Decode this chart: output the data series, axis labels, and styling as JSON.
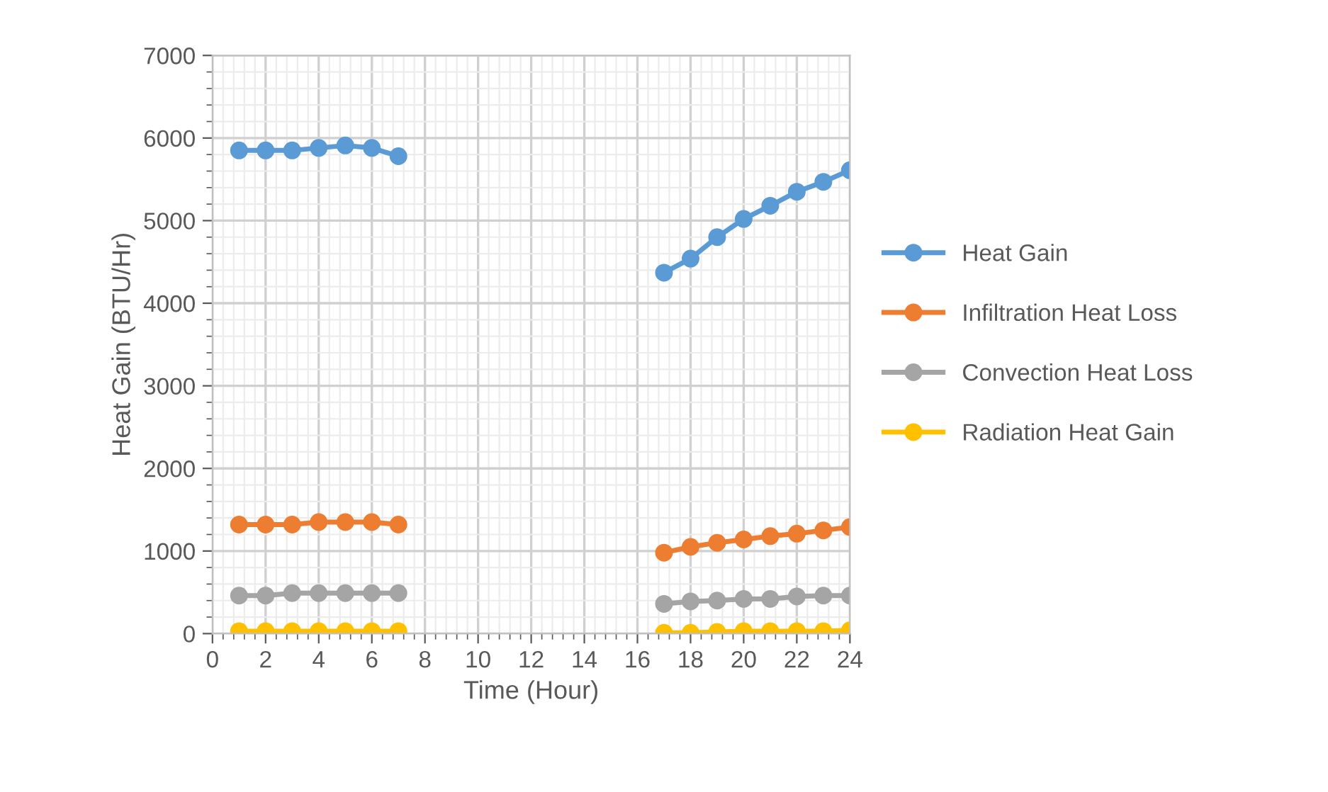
{
  "chart_data": {
    "type": "line",
    "xlabel": "Time (Hour)",
    "ylabel": "Heat Gain (BTU/Hr)",
    "x": [
      1,
      2,
      3,
      4,
      5,
      6,
      7,
      8,
      9,
      10,
      11,
      12,
      13,
      14,
      15,
      16,
      17,
      18,
      19,
      20,
      21,
      22,
      23,
      24
    ],
    "series": [
      {
        "name": "Heat Gain",
        "color": "#5b9bd5",
        "values": [
          5850,
          5850,
          5850,
          5880,
          5910,
          5880,
          5780,
          null,
          null,
          null,
          null,
          null,
          null,
          null,
          null,
          null,
          4370,
          4540,
          4800,
          5020,
          5180,
          5350,
          5470,
          5610
        ]
      },
      {
        "name": "Infiltration Heat Loss",
        "color": "#ed7d31",
        "values": [
          1320,
          1320,
          1320,
          1350,
          1350,
          1350,
          1320,
          null,
          null,
          null,
          null,
          null,
          null,
          null,
          null,
          null,
          980,
          1050,
          1100,
          1140,
          1180,
          1210,
          1250,
          1290
        ]
      },
      {
        "name": "Convection Heat Loss",
        "color": "#a5a5a5",
        "values": [
          460,
          460,
          490,
          490,
          490,
          490,
          490,
          null,
          null,
          null,
          null,
          null,
          null,
          null,
          null,
          null,
          360,
          390,
          400,
          420,
          420,
          450,
          460,
          460
        ]
      },
      {
        "name": "Radiation Heat Gain",
        "color": "#ffc000",
        "values": [
          30,
          30,
          30,
          30,
          30,
          30,
          30,
          null,
          null,
          null,
          null,
          null,
          null,
          null,
          null,
          null,
          10,
          10,
          20,
          30,
          30,
          30,
          30,
          40
        ]
      }
    ],
    "xlim": [
      0,
      24
    ],
    "xticks": [
      0,
      2,
      4,
      6,
      8,
      10,
      12,
      14,
      16,
      18,
      20,
      22,
      24
    ],
    "ylim": [
      0,
      7000
    ],
    "yticks": [
      0,
      1000,
      2000,
      3000,
      4000,
      5000,
      6000,
      7000
    ],
    "grid": true,
    "legend": "right",
    "marker": "circle",
    "line_style": "solid"
  }
}
